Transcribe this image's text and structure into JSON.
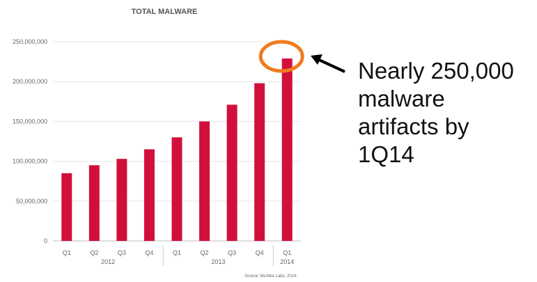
{
  "chart_data": {
    "type": "bar",
    "title": "TOTAL MALWARE",
    "xlabel": "",
    "ylabel": "",
    "categories": [
      "Q1",
      "Q2",
      "Q3",
      "Q4",
      "Q1",
      "Q2",
      "Q3",
      "Q4",
      "Q1"
    ],
    "groups": [
      {
        "label": "2012",
        "span": 4
      },
      {
        "label": "2013",
        "span": 4
      },
      {
        "label": "2014",
        "span": 1
      }
    ],
    "values": [
      85000000,
      95000000,
      103000000,
      115000000,
      130000000,
      150000000,
      171000000,
      198000000,
      229000000
    ],
    "ylim": [
      0,
      250000000
    ],
    "yticks": [
      "0",
      "50,000,000",
      "100,000,000",
      "150,000,000",
      "200,000,000",
      "250,000,000"
    ],
    "ytick_values": [
      0,
      50000000,
      100000000,
      150000000,
      200000000,
      250000000
    ],
    "grid": true,
    "bar_color": "#d0103a",
    "source": "Source: McAfee Labs, 2014."
  },
  "annotation": {
    "lines": [
      "Nearly 250,000",
      "malware",
      "artifacts by",
      "1Q14"
    ],
    "highlight_color": "#f07c1e",
    "arrow_color": "#000000"
  }
}
